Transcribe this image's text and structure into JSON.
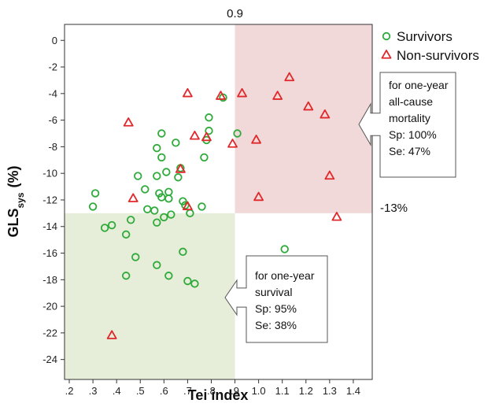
{
  "chart_data": {
    "type": "scatter",
    "title": "",
    "xlabel": "Tei index",
    "ylabel": {
      "main": "GLS",
      "subscript": "sys",
      "unit": "(%)"
    },
    "xlim": [
      0.18,
      1.48
    ],
    "ylim": [
      -25.5,
      1.2
    ],
    "x_ticks": [
      {
        "value": 0.2,
        "label": ".2"
      },
      {
        "value": 0.3,
        "label": ".3"
      },
      {
        "value": 0.4,
        "label": ".4"
      },
      {
        "value": 0.5,
        "label": ".5"
      },
      {
        "value": 0.6,
        "label": ".6"
      },
      {
        "value": 0.7,
        "label": ".7"
      },
      {
        "value": 0.8,
        "label": ".8"
      },
      {
        "value": 0.9,
        "label": ".9"
      },
      {
        "value": 1.0,
        "label": "1.0"
      },
      {
        "value": 1.1,
        "label": "1.1"
      },
      {
        "value": 1.2,
        "label": "1.2"
      },
      {
        "value": 1.3,
        "label": "1.3"
      },
      {
        "value": 1.4,
        "label": "1.4"
      }
    ],
    "y_ticks": [
      {
        "value": 0,
        "label": "0"
      },
      {
        "value": -2,
        "label": "-2"
      },
      {
        "value": -4,
        "label": "-4"
      },
      {
        "value": -6,
        "label": "-6"
      },
      {
        "value": -8,
        "label": "-8"
      },
      {
        "value": -10,
        "label": "-10"
      },
      {
        "value": -12,
        "label": "-12"
      },
      {
        "value": -14,
        "label": "-14"
      },
      {
        "value": -16,
        "label": "-16"
      },
      {
        "value": -18,
        "label": "-18"
      },
      {
        "value": -20,
        "label": "-20"
      },
      {
        "value": -22,
        "label": "-22"
      },
      {
        "value": -24,
        "label": "-24"
      }
    ],
    "grid": false,
    "legend_position": "top-right",
    "cutoffs": {
      "x": 0.9,
      "x_label": "0.9",
      "y": -13,
      "y_label": "-13%"
    },
    "regions": [
      {
        "name": "mortality",
        "x_from": 0.9,
        "x_to": 1.48,
        "y_from": -13,
        "y_to": 1.2,
        "color": "#f2d9d9"
      },
      {
        "name": "survival",
        "x_from": 0.18,
        "x_to": 0.9,
        "y_from": -25.5,
        "y_to": -13,
        "color": "#e6edd8"
      }
    ],
    "series": [
      {
        "name": "Survivors",
        "marker": "circle",
        "color": "#2eaa3a",
        "points": [
          [
            0.3,
            -12.5
          ],
          [
            0.31,
            -11.5
          ],
          [
            0.35,
            -14.1
          ],
          [
            0.38,
            -13.9
          ],
          [
            0.44,
            -14.6
          ],
          [
            0.44,
            -17.7
          ],
          [
            0.46,
            -13.5
          ],
          [
            0.48,
            -16.3
          ],
          [
            0.49,
            -10.2
          ],
          [
            0.52,
            -11.2
          ],
          [
            0.53,
            -12.7
          ],
          [
            0.56,
            -12.8
          ],
          [
            0.57,
            -10.2
          ],
          [
            0.57,
            -13.7
          ],
          [
            0.57,
            -16.9
          ],
          [
            0.57,
            -8.1
          ],
          [
            0.58,
            -11.5
          ],
          [
            0.59,
            -7.0
          ],
          [
            0.59,
            -8.8
          ],
          [
            0.59,
            -11.8
          ],
          [
            0.6,
            -13.3
          ],
          [
            0.61,
            -9.9
          ],
          [
            0.62,
            -11.4
          ],
          [
            0.62,
            -11.9
          ],
          [
            0.62,
            -17.7
          ],
          [
            0.63,
            -13.1
          ],
          [
            0.65,
            -7.7
          ],
          [
            0.66,
            -10.3
          ],
          [
            0.67,
            -9.6
          ],
          [
            0.68,
            -12.1
          ],
          [
            0.68,
            -15.9
          ],
          [
            0.69,
            -12.4
          ],
          [
            0.7,
            -18.1
          ],
          [
            0.71,
            -13.0
          ],
          [
            0.73,
            -18.3
          ],
          [
            0.76,
            -12.5
          ],
          [
            0.77,
            -8.8
          ],
          [
            0.78,
            -7.5
          ],
          [
            0.79,
            -5.8
          ],
          [
            0.79,
            -6.8
          ],
          [
            0.85,
            -4.3
          ],
          [
            0.91,
            -7.0
          ],
          [
            1.11,
            -15.7
          ]
        ]
      },
      {
        "name": "Non-survivors",
        "marker": "triangle",
        "color": "#e0282b",
        "points": [
          [
            0.38,
            -22.2
          ],
          [
            0.45,
            -6.2
          ],
          [
            0.47,
            -11.9
          ],
          [
            0.67,
            -9.7
          ],
          [
            0.7,
            -4.0
          ],
          [
            0.7,
            -12.5
          ],
          [
            0.73,
            -7.2
          ],
          [
            0.78,
            -7.3
          ],
          [
            0.84,
            -4.2
          ],
          [
            0.89,
            -7.8
          ],
          [
            0.93,
            -4.0
          ],
          [
            0.99,
            -7.5
          ],
          [
            1.0,
            -11.8
          ],
          [
            1.08,
            -4.2
          ],
          [
            1.13,
            -2.8
          ],
          [
            1.21,
            -5.0
          ],
          [
            1.28,
            -5.6
          ],
          [
            1.3,
            -10.2
          ],
          [
            1.33,
            -13.3
          ]
        ]
      }
    ],
    "annotations": [
      {
        "name": "mortality-callout",
        "lines": [
          "for one-year",
          "all-cause",
          "mortality",
          "Sp: 100%",
          "Se: 47%"
        ]
      },
      {
        "name": "survival-callout",
        "lines": [
          "for one-year",
          "survival",
          "Sp: 95%",
          "Se: 38%"
        ]
      }
    ]
  }
}
